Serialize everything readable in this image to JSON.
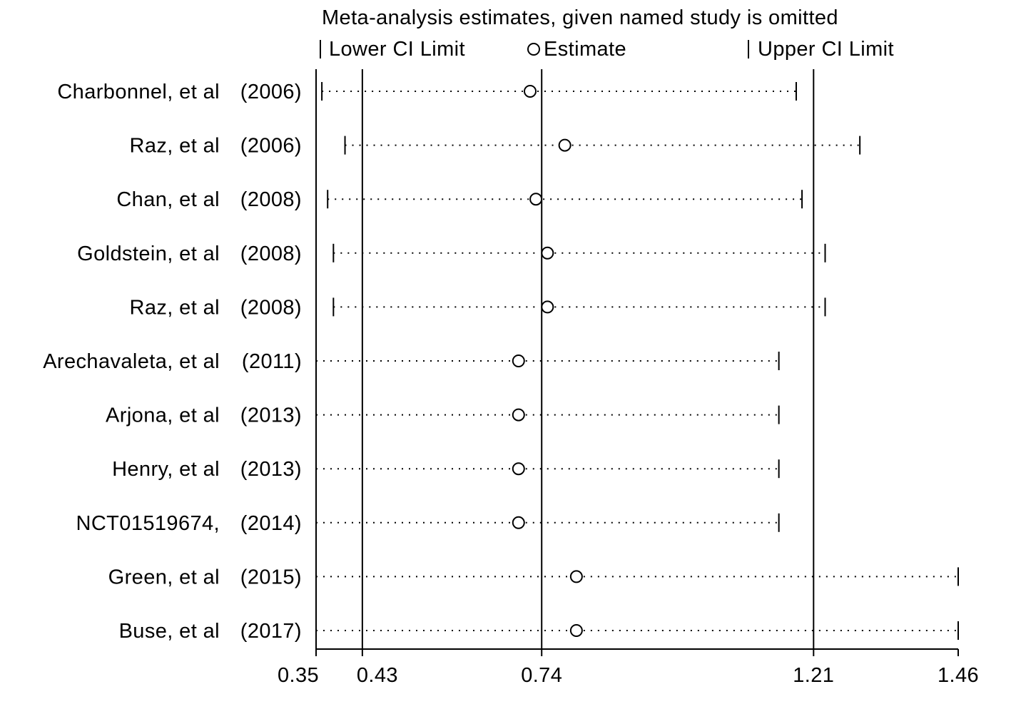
{
  "chart_data": {
    "type": "scatter",
    "title": "Meta-analysis estimates, given named study is omitted",
    "legend": {
      "placement": "top",
      "lower_label": "Lower CI Limit",
      "estimate_label": "Estimate",
      "upper_label": "Upper CI Limit"
    },
    "xlim": [
      0.35,
      1.46
    ],
    "x_ticks": [
      0.35,
      0.43,
      0.74,
      1.21,
      1.46
    ],
    "x_tick_labels": [
      "0.35",
      "0.43",
      "0.74",
      "1.21",
      "1.46"
    ],
    "reference_lines": [
      0.43,
      0.74,
      1.21
    ],
    "studies": [
      {
        "name": "Charbonnel, et al",
        "year": "(2006)",
        "lower": 0.36,
        "estimate": 0.72,
        "upper": 1.18
      },
      {
        "name": "Raz, et al",
        "year": "(2006)",
        "lower": 0.4,
        "estimate": 0.78,
        "upper": 1.29
      },
      {
        "name": "Chan, et al",
        "year": "(2008)",
        "lower": 0.37,
        "estimate": 0.73,
        "upper": 1.19
      },
      {
        "name": "Goldstein, et al",
        "year": "(2008)",
        "lower": 0.38,
        "estimate": 0.75,
        "upper": 1.23
      },
      {
        "name": "Raz, et al",
        "year": "(2008)",
        "lower": 0.38,
        "estimate": 0.75,
        "upper": 1.23
      },
      {
        "name": "Arechavaleta, et al",
        "year": "(2011)",
        "lower": 0.35,
        "estimate": 0.7,
        "upper": 1.15
      },
      {
        "name": "Arjona, et al",
        "year": "(2013)",
        "lower": 0.35,
        "estimate": 0.7,
        "upper": 1.15
      },
      {
        "name": "Henry, et al",
        "year": "(2013)",
        "lower": 0.35,
        "estimate": 0.7,
        "upper": 1.15
      },
      {
        "name": "NCT01519674,",
        "year": "(2014)",
        "lower": 0.35,
        "estimate": 0.7,
        "upper": 1.15
      },
      {
        "name": "Green, et al",
        "year": "(2015)",
        "lower": 0.35,
        "estimate": 0.8,
        "upper": 1.46
      },
      {
        "name": "Buse, et al",
        "year": "(2017)",
        "lower": 0.35,
        "estimate": 0.8,
        "upper": 1.46
      }
    ]
  },
  "colors": {
    "foreground": "#000000",
    "background": "#ffffff"
  }
}
